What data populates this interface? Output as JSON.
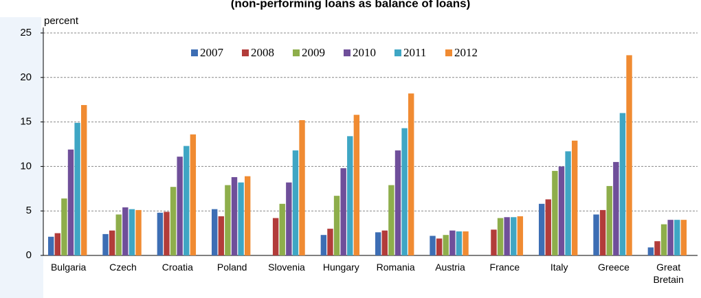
{
  "chart_data": {
    "type": "bar",
    "title": "(non-performing loans as balance of loans)",
    "y_label": "percent",
    "categories": [
      "Bulgaria",
      "Czech",
      "Croatia",
      "Poland",
      "Slovenia",
      "Hungary",
      "Romania",
      "Austria",
      "France",
      "Italy",
      "Greece",
      "Great Bretain"
    ],
    "series": [
      {
        "name": "2007",
        "color": "#3d6eb4",
        "values": [
          2.1,
          2.4,
          4.8,
          5.2,
          null,
          2.3,
          2.6,
          2.2,
          null,
          5.8,
          4.6,
          0.9
        ]
      },
      {
        "name": "2008",
        "color": "#b23c3a",
        "values": [
          2.5,
          2.8,
          4.9,
          4.4,
          4.2,
          3.0,
          2.8,
          1.9,
          2.9,
          6.3,
          5.1,
          1.6
        ]
      },
      {
        "name": "2009",
        "color": "#8eae4b",
        "values": [
          6.4,
          4.6,
          7.7,
          7.9,
          5.8,
          6.7,
          7.9,
          2.3,
          4.2,
          9.5,
          7.8,
          3.5
        ]
      },
      {
        "name": "2010",
        "color": "#6f4f9a",
        "values": [
          11.9,
          5.4,
          11.1,
          8.8,
          8.2,
          9.8,
          11.8,
          2.8,
          4.3,
          10.0,
          10.5,
          4.0
        ]
      },
      {
        "name": "2011",
        "color": "#3fa6c4",
        "values": [
          14.9,
          5.2,
          12.3,
          8.2,
          11.8,
          13.4,
          14.3,
          2.7,
          4.3,
          11.7,
          16.0,
          4.0
        ]
      },
      {
        "name": "2012",
        "color": "#f08b32",
        "values": [
          16.9,
          5.1,
          13.6,
          8.9,
          15.2,
          15.8,
          18.2,
          2.7,
          4.4,
          12.9,
          22.5,
          4.0
        ]
      }
    ],
    "ylim": [
      0,
      25
    ],
    "yticks": [
      0,
      5,
      10,
      15,
      20,
      25
    ],
    "grid": true,
    "legend": "top"
  }
}
